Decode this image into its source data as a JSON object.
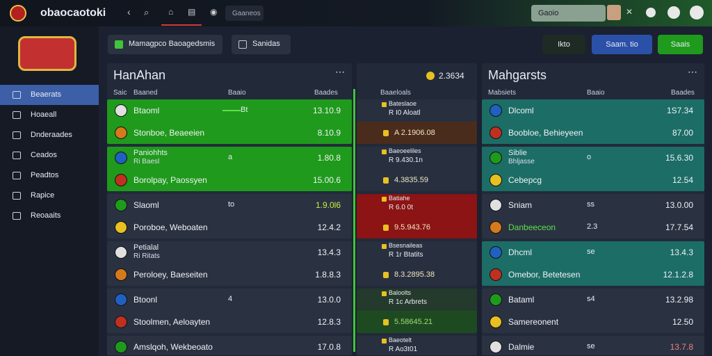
{
  "header": {
    "logo": "obaocaotoki",
    "search": "Gaaneos",
    "account_search": "Gaoio"
  },
  "toolbar": {
    "tabs": [
      "Mamagpco Baoagedsmis",
      "Sanidas"
    ],
    "actions": [
      "Ikto",
      "Saam. tio",
      "Saais"
    ]
  },
  "sidebar": {
    "items": [
      "Beaerats",
      "Hoaeall",
      "Dnderaades",
      "Ceados",
      "Peadtos",
      "Rapice",
      "Reoaaits"
    ]
  },
  "panels": [
    {
      "title": "HanAhan",
      "columns": [
        "Saic",
        "Baaned",
        "Baaio",
        "Baades"
      ],
      "groups": [
        {
          "color": "#1f9a1c",
          "rows": [
            {
              "team": "Btaoml",
              "mid": "Bt",
              "value": "13.10.9"
            },
            {
              "team": "Stonboe, Beaeeien",
              "value": "8.10.9"
            }
          ]
        },
        {
          "color": "#1f9a1c",
          "rows": [
            {
              "team": "Paniohhts",
              "sub": "Ri Baesl",
              "mid": "a",
              "value": "1.80.8"
            },
            {
              "team": "Borolpay, Paossyen",
              "value": "15.00.6"
            }
          ]
        },
        {
          "color": "#2a3242",
          "rows": [
            {
              "team": "Slaoml",
              "mid": "to",
              "value": "1.9.0l6"
            },
            {
              "team": "Poroboe, Weboaten",
              "value": "12.4.2"
            }
          ]
        },
        {
          "color": "#2a3242",
          "rows": [
            {
              "team": "Petialal",
              "sub": "Ri Ritats",
              "value": "13.4.3"
            },
            {
              "team": "Peroloey, Baeseiten",
              "value": "1.8.8.3"
            }
          ]
        },
        {
          "color": "#2a3242",
          "rows": [
            {
              "team": "Btoonl",
              "mid": "4",
              "value": "13.0.0"
            },
            {
              "team": "Stoolmen, Aeloayten",
              "value": "12.8.3"
            }
          ]
        },
        {
          "color": "#2a3242",
          "rows": [
            {
              "team": "Amslqoh, Wekbeoato",
              "value": "17.0.8"
            }
          ]
        }
      ]
    },
    {
      "title": "2.3634",
      "columns": [
        "Baaeloals"
      ],
      "groups": [
        {
          "color": "#283040",
          "rows": [
            {
              "team": "Bateslaoe",
              "sub": "R I0 Aloatl"
            },
            {
              "value": "A 2.1906.08"
            }
          ]
        },
        {
          "color": "#283040",
          "rows": [
            {
              "team": "Baeoeeliles",
              "sub": "R 9.430.1n"
            },
            {
              "value": "4.3835.59"
            }
          ]
        },
        {
          "color": "#8c1414",
          "rows": [
            {
              "team": "Batiahe",
              "sub": "R 6.0 0t"
            },
            {
              "value": "9.5.943.76"
            }
          ]
        },
        {
          "color": "#283040",
          "rows": [
            {
              "team": "Bsesnaileas",
              "sub": "R 1r Btatits"
            },
            {
              "value": "8.3.2895.38"
            }
          ]
        },
        {
          "color": "#243a2c",
          "rows": [
            {
              "team": "Baloolts",
              "sub": "R 1c Arbrets"
            },
            {
              "value": "5.58645.21"
            }
          ]
        },
        {
          "color": "#283040",
          "rows": [
            {
              "team": "Baeotelt",
              "sub": "R Ao3t01"
            }
          ]
        }
      ]
    },
    {
      "title": "Mahgarsts",
      "columns": [
        "Mabsiets",
        "Baaio",
        "Baades"
      ],
      "groups": [
        {
          "color": "#1c6d66",
          "rows": [
            {
              "team": "Dlcoml",
              "value": "1S7.34"
            },
            {
              "team": "Boobloe, Behieyeen",
              "value": "87.00"
            }
          ]
        },
        {
          "color": "#1c6d66",
          "rows": [
            {
              "team": "Siblie",
              "sub": "Bhljasse",
              "mid": "o",
              "value": "15.6.30"
            },
            {
              "team": "Cebepcg",
              "value": "12.54"
            }
          ]
        },
        {
          "color": "#2a3242",
          "rows": [
            {
              "team": "Sniam",
              "mid": "ss",
              "value": "13.0.00"
            },
            {
              "team": "Danbeeceon",
              "mid": "2.3",
              "value": "17.7.54"
            }
          ]
        },
        {
          "color": "#1c6d66",
          "rows": [
            {
              "team": "Dhcml",
              "mid": "se",
              "value": "13.4.3"
            },
            {
              "team": "Omebor, Betetesen",
              "value": "12.1.2.8"
            }
          ]
        },
        {
          "color": "#2a3242",
          "rows": [
            {
              "team": "Bataml",
              "mid": "s4",
              "value": "13.2.98"
            },
            {
              "team": "Samereonent",
              "value": "12.50"
            }
          ]
        },
        {
          "color": "#2a3242",
          "rows": [
            {
              "team": "Dalmie",
              "mid": "se",
              "value": "13.7.8"
            }
          ]
        }
      ]
    }
  ]
}
